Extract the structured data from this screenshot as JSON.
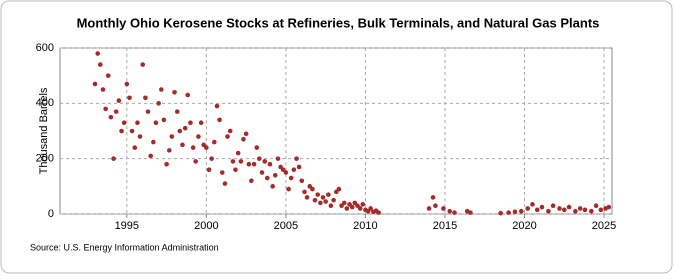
{
  "chart_data": {
    "type": "scatter",
    "title": "Monthly Ohio Kerosene Stocks at Refineries, Bulk Terminals, and Natural Gas Plants",
    "y_label": "Thousand Barrels",
    "source": "Source: U.S. Energy Information Administration",
    "color": "#a52a2a",
    "grid": true,
    "xlim": [
      1990.8,
      2025.5
    ],
    "xticks": [
      1995,
      2000,
      2005,
      2010,
      2015,
      2020,
      2025
    ],
    "ylim": [
      0,
      600
    ],
    "yticks": [
      0,
      200,
      400,
      600
    ],
    "x": [
      1993,
      1993.17,
      1993.33,
      1993.5,
      1993.67,
      1993.83,
      1994,
      1994.17,
      1994.33,
      1994.5,
      1994.67,
      1994.83,
      1995,
      1995.17,
      1995.33,
      1995.5,
      1995.67,
      1995.83,
      1996,
      1996.17,
      1996.33,
      1996.5,
      1996.67,
      1996.83,
      1997,
      1997.17,
      1997.33,
      1997.5,
      1997.67,
      1997.83,
      1998,
      1998.17,
      1998.33,
      1998.5,
      1998.67,
      1998.83,
      1999,
      1999.17,
      1999.33,
      1999.5,
      1999.67,
      1999.83,
      2000,
      2000.17,
      2000.33,
      2000.5,
      2000.67,
      2000.83,
      2001,
      2001.17,
      2001.33,
      2001.5,
      2001.67,
      2001.83,
      2002,
      2002.17,
      2002.33,
      2002.5,
      2002.67,
      2002.83,
      2003,
      2003.17,
      2003.33,
      2003.5,
      2003.67,
      2003.83,
      2004,
      2004.17,
      2004.33,
      2004.5,
      2004.67,
      2004.83,
      2005,
      2005.17,
      2005.33,
      2005.5,
      2005.67,
      2005.83,
      2006,
      2006.17,
      2006.33,
      2006.5,
      2006.67,
      2006.83,
      2007,
      2007.17,
      2007.33,
      2007.5,
      2007.67,
      2007.83,
      2008,
      2008.17,
      2008.33,
      2008.5,
      2008.67,
      2008.83,
      2009,
      2009.17,
      2009.33,
      2009.5,
      2009.67,
      2009.83,
      2010,
      2010.17,
      2010.33,
      2010.5,
      2010.67,
      2010.83,
      2014,
      2014.25,
      2014.4,
      2014.9,
      2015.3,
      2015.6,
      2016.4,
      2016.6,
      2018.5,
      2019,
      2019.4,
      2019.8,
      2020.2,
      2020.5,
      2020.8,
      2021.1,
      2021.5,
      2021.8,
      2022.2,
      2022.5,
      2022.8,
      2023.2,
      2023.5,
      2023.8,
      2024.2,
      2024.5,
      2024.8,
      2025.1,
      2025.3
    ],
    "values": [
      470,
      580,
      540,
      450,
      380,
      500,
      350,
      200,
      370,
      410,
      300,
      330,
      470,
      420,
      300,
      240,
      330,
      280,
      540,
      420,
      370,
      210,
      260,
      330,
      400,
      450,
      340,
      180,
      230,
      280,
      440,
      370,
      300,
      250,
      310,
      430,
      330,
      240,
      190,
      280,
      330,
      250,
      240,
      160,
      200,
      260,
      390,
      340,
      150,
      110,
      280,
      300,
      190,
      160,
      220,
      190,
      270,
      290,
      180,
      120,
      180,
      240,
      200,
      150,
      190,
      130,
      180,
      100,
      140,
      200,
      170,
      160,
      150,
      90,
      130,
      160,
      200,
      170,
      120,
      80,
      60,
      100,
      90,
      50,
      70,
      40,
      60,
      45,
      70,
      30,
      50,
      80,
      90,
      30,
      40,
      20,
      35,
      25,
      40,
      30,
      20,
      35,
      15,
      10,
      20,
      8,
      12,
      5,
      20,
      60,
      30,
      20,
      10,
      5,
      10,
      5,
      3,
      5,
      8,
      10,
      20,
      35,
      15,
      25,
      10,
      30,
      20,
      15,
      25,
      10,
      20,
      15,
      10,
      30,
      15,
      20,
      25
    ]
  }
}
